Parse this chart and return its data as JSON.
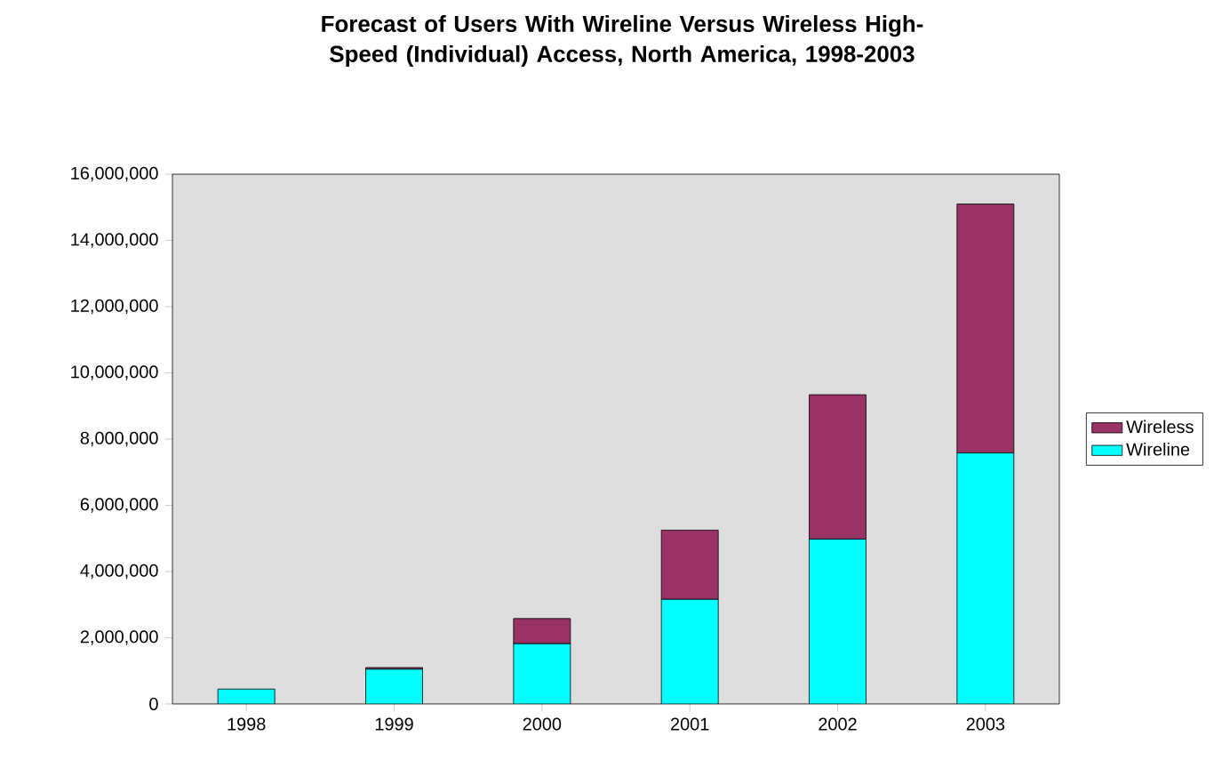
{
  "chart_data": {
    "type": "bar",
    "stacked": true,
    "title": "Forecast of Users With Wireline Versus Wireless High-Speed (Individual) Access, North America, 1998-2003",
    "categories": [
      "1998",
      "1999",
      "2000",
      "2001",
      "2002",
      "2003"
    ],
    "series": [
      {
        "name": "Wireline",
        "color": "#00ffff",
        "values": [
          450000,
          1050000,
          1820000,
          3160000,
          4980000,
          7580000
        ]
      },
      {
        "name": "Wireless",
        "color": "#993366",
        "values": [
          0,
          50000,
          760000,
          2090000,
          4360000,
          7520000
        ]
      }
    ],
    "ylim": [
      0,
      16000000
    ],
    "yticks": [
      {
        "value": 0,
        "label": "0"
      },
      {
        "value": 2000000,
        "label": "2,000,000"
      },
      {
        "value": 4000000,
        "label": "4,000,000"
      },
      {
        "value": 6000000,
        "label": "6,000,000"
      },
      {
        "value": 8000000,
        "label": "8,000,000"
      },
      {
        "value": 10000000,
        "label": "10,000,000"
      },
      {
        "value": 12000000,
        "label": "12,000,000"
      },
      {
        "value": 14000000,
        "label": "14,000,000"
      },
      {
        "value": 16000000,
        "label": "16,000,000"
      }
    ],
    "grid": false,
    "legend": "right"
  }
}
